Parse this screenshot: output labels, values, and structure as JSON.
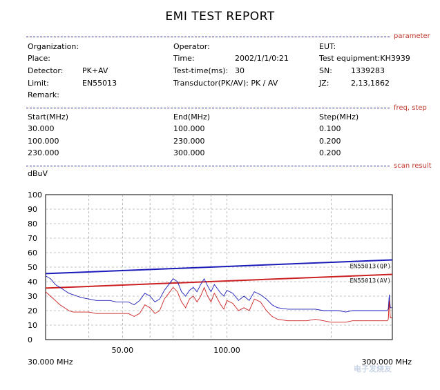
{
  "report": {
    "title": "EMI TEST REPORT",
    "sections": {
      "parameter": "parameter",
      "freq_step": "freq, step",
      "scan_result": "scan result"
    }
  },
  "params": {
    "organization_label": "Organization:",
    "place_label": "Place:",
    "detector_label": "Detector:",
    "detector_value": "PK+AV",
    "limit_label": "Limit:",
    "limit_value": "EN55013",
    "remark_label": "Remark:",
    "operator_label": "Operator:",
    "time_label": "Time:",
    "time_value": "2002/1/1/0:21",
    "test_time_label": "Test-time(ms):",
    "test_time_value": "30",
    "transductor_label": "Transductor(PK/AV): PK  /  AV",
    "eut_label": "EUT:",
    "test_equipment_label": "Test equipment:KH3939",
    "sn_label": "SN:",
    "sn_value": "1339283",
    "jz_label": "JZ:",
    "jz_value": "2,13,1862"
  },
  "freq_table": {
    "headers": [
      "Start(MHz)",
      "End(MHz)",
      "Step(MHz)"
    ],
    "rows": [
      [
        "30.000",
        "100.000",
        "0.100"
      ],
      [
        "100.000",
        "230.000",
        "0.200"
      ],
      [
        "230.000",
        "300.000",
        "0.200"
      ]
    ]
  },
  "chart_data": {
    "type": "line",
    "title": "",
    "ylabel": "dBuV",
    "xlabel": "",
    "x_scale": "log",
    "xlim": [
      30,
      300
    ],
    "ylim": [
      0,
      100
    ],
    "y_ticks": [
      "0",
      "10",
      "20",
      "30",
      "40",
      "50",
      "60",
      "70",
      "80",
      "90",
      "100"
    ],
    "x_tick_labels": [
      {
        "x": 30,
        "label": "30.000 MHz"
      },
      {
        "x": 50,
        "label": "50.00"
      },
      {
        "x": 100,
        "label": "100.00"
      },
      {
        "x": 300,
        "label": "300.000 MHz"
      }
    ],
    "grid": true,
    "series": [
      {
        "name": "EN55013(QP)",
        "color": "#1a1ab8",
        "x": [
          30,
          300
        ],
        "y": [
          45.5,
          55
        ]
      },
      {
        "name": "EN55013(AV)",
        "color": "#cc2020",
        "x": [
          30,
          300
        ],
        "y": [
          35.5,
          45
        ]
      },
      {
        "name": "",
        "color": "#1a1ab8",
        "x": [
          30,
          31,
          32,
          33,
          34,
          35,
          36,
          37,
          38,
          40,
          42,
          44,
          46,
          48,
          50,
          52,
          54,
          56,
          58,
          60,
          62,
          64,
          66,
          68,
          70,
          72,
          74,
          76,
          78,
          80,
          82,
          84,
          86,
          88,
          90,
          92,
          94,
          96,
          98,
          100,
          104,
          108,
          112,
          116,
          120,
          125,
          130,
          135,
          140,
          150,
          160,
          170,
          180,
          190,
          200,
          210,
          220,
          230,
          240,
          250,
          260,
          270,
          280,
          290,
          292,
          294,
          296,
          298,
          300
        ],
        "y": [
          44,
          42,
          38,
          36,
          34,
          32,
          31,
          30,
          29,
          28,
          27,
          27,
          27,
          26,
          26,
          26,
          24,
          27,
          32,
          30,
          26,
          28,
          34,
          38,
          42,
          40,
          33,
          30,
          34,
          36,
          33,
          38,
          42,
          37,
          33,
          38,
          35,
          32,
          30,
          34,
          32,
          27,
          30,
          27,
          33,
          31,
          28,
          24,
          22,
          21,
          21,
          21,
          21,
          20,
          20,
          20,
          19,
          20,
          20,
          20,
          20,
          20,
          20,
          20,
          21,
          31,
          22,
          22,
          22
        ]
      },
      {
        "name": "",
        "color": "#cc2020",
        "x": [
          30,
          31,
          32,
          33,
          34,
          35,
          36,
          37,
          38,
          40,
          42,
          44,
          46,
          48,
          50,
          52,
          54,
          56,
          58,
          60,
          62,
          64,
          66,
          68,
          70,
          72,
          74,
          76,
          78,
          80,
          82,
          84,
          86,
          88,
          90,
          92,
          94,
          96,
          98,
          100,
          104,
          108,
          112,
          116,
          120,
          125,
          130,
          135,
          140,
          150,
          160,
          170,
          180,
          190,
          200,
          210,
          220,
          230,
          240,
          250,
          260,
          270,
          280,
          290,
          292,
          294,
          296,
          298,
          300
        ],
        "y": [
          33,
          30,
          27,
          24,
          22,
          20,
          19,
          19,
          19,
          19,
          18,
          18,
          18,
          18,
          18,
          18,
          16,
          18,
          24,
          22,
          18,
          20,
          28,
          32,
          36,
          33,
          26,
          22,
          28,
          30,
          26,
          30,
          36,
          30,
          26,
          32,
          28,
          24,
          21,
          27,
          25,
          20,
          22,
          20,
          28,
          26,
          20,
          16,
          14,
          13,
          13,
          13,
          14,
          13,
          12,
          12,
          12,
          13,
          13,
          13,
          13,
          13,
          13,
          13,
          14,
          27,
          15,
          15,
          15
        ]
      }
    ]
  },
  "watermark": "电子发烧友"
}
